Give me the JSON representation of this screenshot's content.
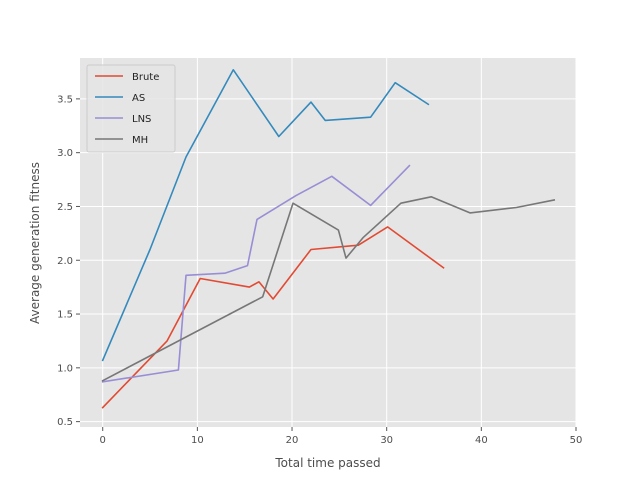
{
  "chart_data": {
    "type": "line",
    "title": "",
    "xlabel": "Total time passed",
    "ylabel": "Average generation fitness",
    "xlim": [
      -2.4,
      50
    ],
    "ylim": [
      0.45,
      3.88
    ],
    "xticks": [
      0,
      10,
      20,
      30,
      40,
      50
    ],
    "yticks": [
      0.5,
      1.0,
      1.5,
      2.0,
      2.5,
      3.0,
      3.5
    ],
    "xtick_labels": [
      "0",
      "10",
      "20",
      "30",
      "40",
      "50"
    ],
    "ytick_labels": [
      "0.5",
      "1.0",
      "1.5",
      "2.0",
      "2.5",
      "3.0",
      "3.5"
    ],
    "grid": true,
    "legend_position": "top-left",
    "colors": {
      "background": "#e5e5e5",
      "grid": "#ffffff"
    },
    "series": [
      {
        "name": "Brute",
        "color": "#e24a33",
        "x": [
          0,
          6.8,
          10.3,
          15.5,
          16.5,
          18.0,
          22.0,
          27.0,
          30.1,
          36.0
        ],
        "y": [
          0.63,
          1.25,
          1.83,
          1.75,
          1.8,
          1.64,
          2.1,
          2.14,
          2.31,
          1.93
        ]
      },
      {
        "name": "AS",
        "color": "#348abd",
        "x": [
          0,
          5.0,
          8.8,
          13.8,
          18.6,
          22.0,
          23.5,
          28.3,
          30.9,
          34.4
        ],
        "y": [
          1.07,
          2.1,
          2.96,
          3.77,
          3.15,
          3.47,
          3.3,
          3.33,
          3.65,
          3.45
        ]
      },
      {
        "name": "LNS",
        "color": "#988ed5",
        "x": [
          0,
          8.0,
          8.8,
          12.9,
          15.3,
          16.3,
          20.4,
          24.2,
          28.3,
          32.4
        ],
        "y": [
          0.87,
          0.98,
          1.86,
          1.88,
          1.95,
          2.38,
          2.6,
          2.78,
          2.51,
          2.88
        ]
      },
      {
        "name": "MH",
        "color": "#777777",
        "x": [
          0,
          16.9,
          20.1,
          24.9,
          25.7,
          27.5,
          31.5,
          34.7,
          38.8,
          43.7,
          47.7
        ],
        "y": [
          0.88,
          1.66,
          2.53,
          2.28,
          2.02,
          2.21,
          2.53,
          2.59,
          2.44,
          2.49,
          2.56
        ]
      }
    ]
  }
}
